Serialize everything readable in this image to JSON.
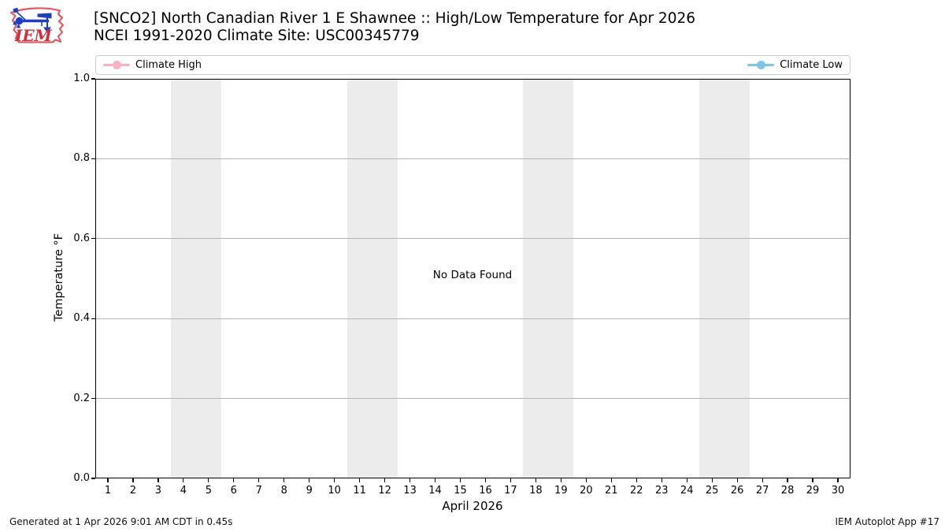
{
  "header": {
    "logo_text": "IEM",
    "title_line1": "[SNCO2] North Canadian River 1 E Shawnee :: High/Low Temperature for Apr 2026",
    "title_line2": "NCEI 1991-2020 Climate Site: USC00345779"
  },
  "legend": {
    "items": [
      {
        "label": "Climate High",
        "color": "#F8B2C2",
        "icon": "line-dot-marker"
      },
      {
        "label": "Climate Low",
        "color": "#7EC6E6",
        "icon": "line-dot-marker"
      }
    ]
  },
  "chart_data": {
    "type": "line",
    "title": "[SNCO2] North Canadian River 1 E Shawnee :: High/Low Temperature for Apr 2026",
    "subtitle": "NCEI 1991-2020 Climate Site: USC00345779",
    "xlabel": "April 2026",
    "ylabel": "Temperature °F",
    "xlim": [
      0.5,
      30.5
    ],
    "ylim": [
      0.0,
      1.0
    ],
    "x_ticks": [
      1,
      2,
      3,
      4,
      5,
      6,
      7,
      8,
      9,
      10,
      11,
      12,
      13,
      14,
      15,
      16,
      17,
      18,
      19,
      20,
      21,
      22,
      23,
      24,
      25,
      26,
      27,
      28,
      29,
      30
    ],
    "y_tick_labels": [
      "1.0",
      "0.8",
      "0.6",
      "0.4",
      "0.2",
      "0.0"
    ],
    "grid": true,
    "grid_color": "#b4b4b4",
    "weekend_bands": [
      [
        3.5,
        5.5
      ],
      [
        10.5,
        12.5
      ],
      [
        17.5,
        19.5
      ],
      [
        24.5,
        26.5
      ]
    ],
    "band_color": "#ececec",
    "series": [
      {
        "name": "Climate High",
        "color": "#F8B2C2",
        "values": []
      },
      {
        "name": "Climate Low",
        "color": "#7EC6E6",
        "values": []
      }
    ],
    "annotation": "No Data Found",
    "legend_position": "expanded-top"
  },
  "footer": {
    "left": "Generated at 1 Apr 2026 9:01 AM CDT in 0.45s",
    "right": "IEM Autoplot App #17"
  }
}
